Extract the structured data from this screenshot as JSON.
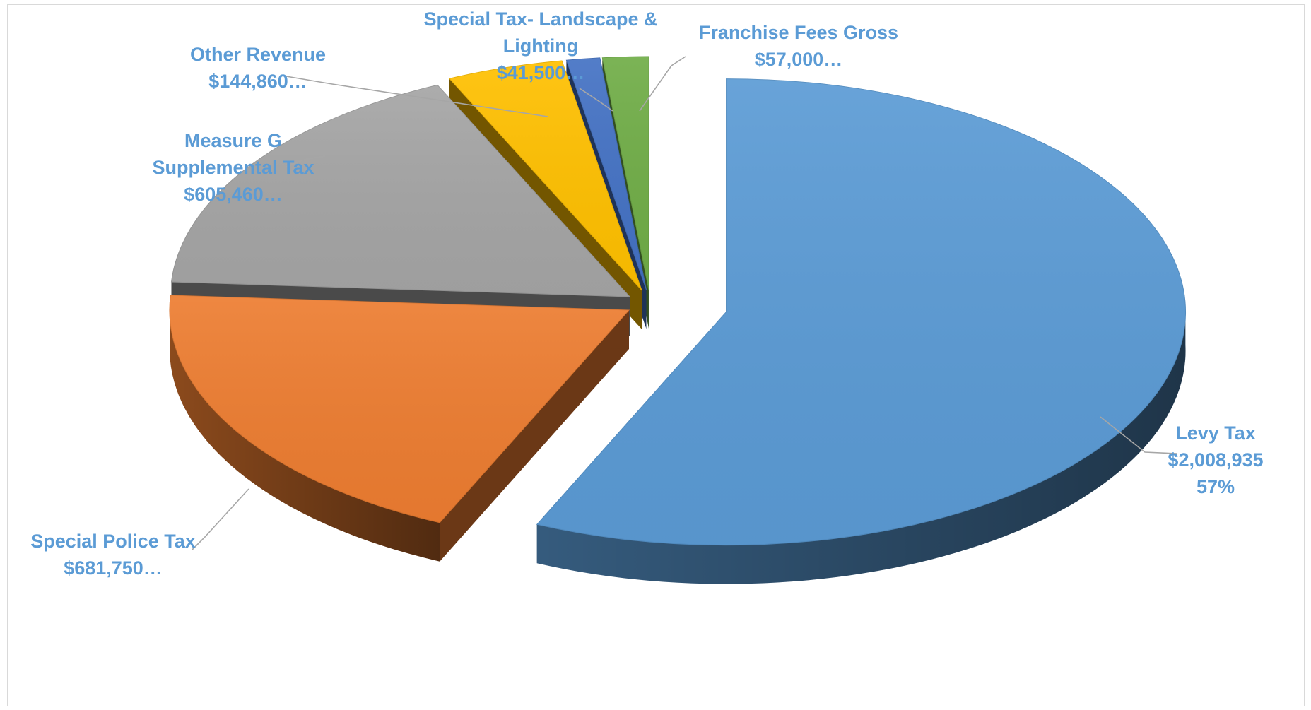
{
  "chart_data": {
    "type": "pie",
    "style": "3d-exploded",
    "slices": [
      {
        "name": "Levy Tax",
        "value": 2008935,
        "value_label": "$2,008,935",
        "percent_label": "57%",
        "color": "#5b9bd5"
      },
      {
        "name": "Special Police Tax",
        "value": 681750,
        "value_label": "$681,750…",
        "color": "#ed7d31"
      },
      {
        "name": "Measure G Supplemental Tax",
        "value": 605460,
        "value_label": "$605,460…",
        "color": "#a5a5a5"
      },
      {
        "name": "Other Revenue",
        "value": 144860,
        "value_label": "$144,860…",
        "color": "#ffc000"
      },
      {
        "name": "Special Tax- Landscape & Lighting",
        "value": 41500,
        "value_label": "$41,500…",
        "color": "#4472c4"
      },
      {
        "name": "Franchise Fees Gross",
        "value": 57000,
        "value_label": "$57,000…",
        "color": "#70ad47"
      }
    ],
    "labels": [
      {
        "slice": 0,
        "lines": [
          "Levy Tax",
          "$2,008,935",
          "57%"
        ]
      },
      {
        "slice": 1,
        "lines": [
          "Special Police Tax",
          "$681,750…"
        ]
      },
      {
        "slice": 2,
        "lines": [
          "Measure G",
          "Supplemental Tax",
          "$605,460…"
        ]
      },
      {
        "slice": 3,
        "lines": [
          "Other Revenue",
          "$144,860…"
        ]
      },
      {
        "slice": 4,
        "lines": [
          "Special Tax- Landscape &",
          "Lighting",
          "$41,500…"
        ]
      },
      {
        "slice": 5,
        "lines": [
          "Franchise Fees Gross",
          "$57,000…"
        ]
      }
    ],
    "legend": "none"
  }
}
